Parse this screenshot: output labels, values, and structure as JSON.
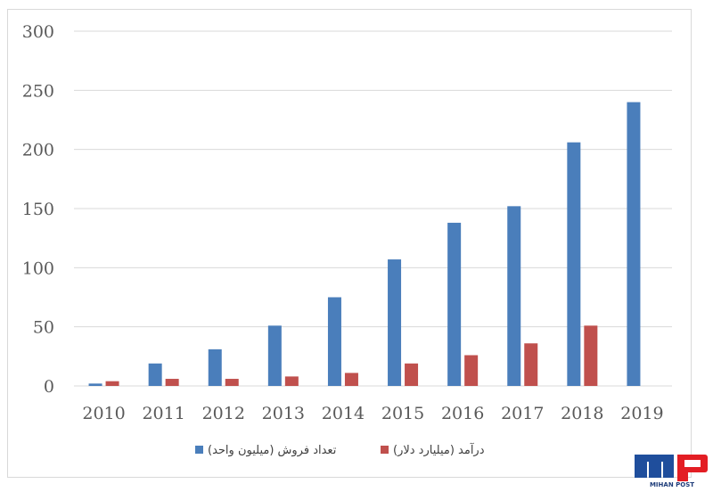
{
  "chart_data": {
    "type": "bar",
    "title": "",
    "xlabel": "",
    "ylabel": "",
    "categories": [
      "2010",
      "2011",
      "2012",
      "2013",
      "2014",
      "2015",
      "2016",
      "2017",
      "2018",
      "2019"
    ],
    "ylim": [
      0,
      300
    ],
    "yticks": [
      0,
      50,
      100,
      150,
      200,
      250,
      300
    ],
    "grid": true,
    "legend_position": "bottom",
    "series": [
      {
        "name": "تعداد فروش (میلیون واحد)",
        "color": "#4a7ebb",
        "values": [
          2,
          19,
          31,
          51,
          75,
          107,
          138,
          152,
          206,
          240
        ]
      },
      {
        "name": "درآمد (میلیارد دلار)",
        "color": "#c0504d",
        "values": [
          4,
          6,
          6,
          8,
          11,
          19,
          26,
          36,
          51,
          null
        ]
      }
    ]
  },
  "logo": {
    "text": "MIHAN POST",
    "colors": {
      "blue": "#1f4e9c",
      "red": "#e31e24"
    }
  }
}
